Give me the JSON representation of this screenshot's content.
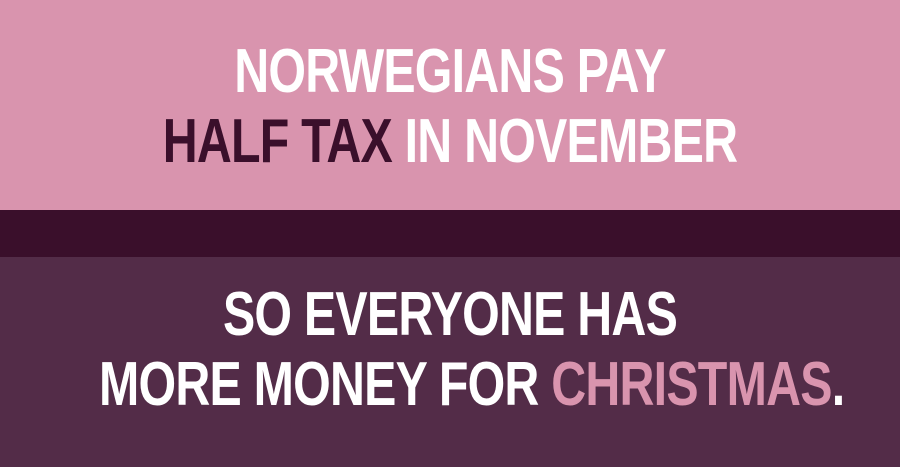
{
  "top_text": {
    "line1": "NORWEGIANS PAY",
    "line2_emphasis": "HALF TAX",
    "line2_rest": " IN NOVEMBER"
  },
  "bottom_text": {
    "line1": "SO EVERYONE HAS",
    "line2_start": "MORE MONEY FOR ",
    "line2_emphasis": "CHRISTMAS",
    "line2_end": "."
  },
  "colors": {
    "top_panel": "#d994ae",
    "divider_band": "#3a0f2b",
    "bottom_panel": "#532c48",
    "text_primary": "#ffffff",
    "text_dark_emphasis": "#3a0f2b",
    "text_pink_emphasis": "#d994ae"
  }
}
